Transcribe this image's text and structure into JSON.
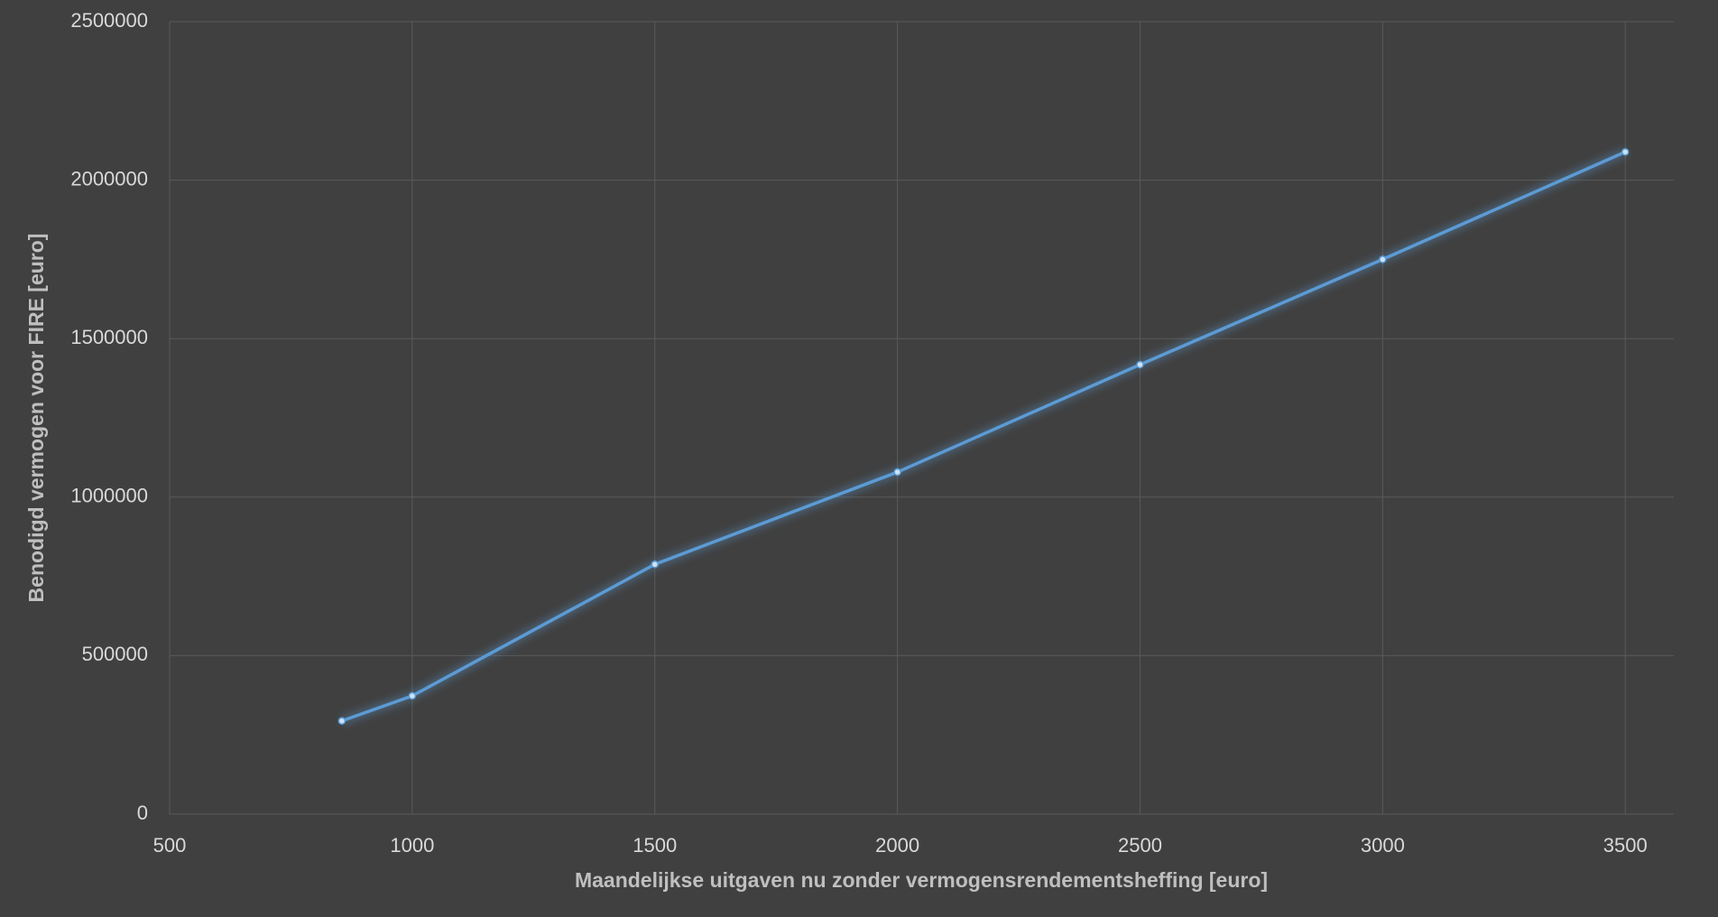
{
  "chart_data": {
    "type": "line",
    "x_label": "Maandelijkse uitgaven nu zonder vermogensrendementsheffing [euro]",
    "y_label": "Benodigd vermogen voor FIRE [euro]",
    "x": [
      855,
      1000,
      1500,
      2000,
      2500,
      3000,
      3500
    ],
    "series": [
      {
        "color": "#5b9bd5",
        "values": [
          294000,
          373000,
          788000,
          1079000,
          1418000,
          1750000,
          2089000
        ]
      }
    ],
    "xlim": [
      500,
      3600
    ],
    "xticks": [
      500,
      1000,
      1500,
      2000,
      2500,
      3000,
      3500
    ],
    "ylim": [
      0,
      2500000
    ],
    "yticks": [
      0,
      500000,
      1000000,
      1500000,
      2000000,
      2500000
    ],
    "grid": true
  }
}
